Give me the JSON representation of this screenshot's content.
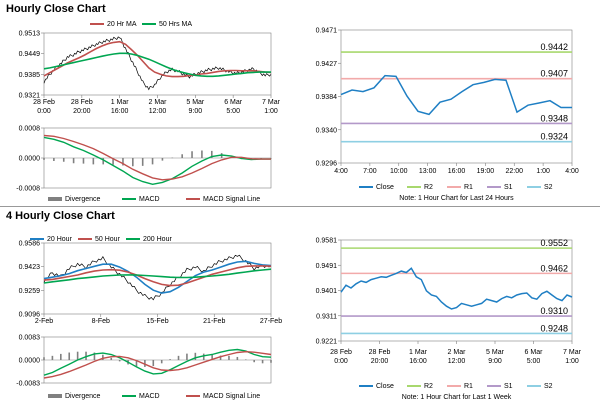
{
  "sections": {
    "hourly_title": "Hourly Close Chart",
    "four_hourly_title": "4 Hourly Close Chart"
  },
  "colors": {
    "price": "#000000",
    "ma20": "#c0504d",
    "ma50": "#00a651",
    "ma200": "#00a651",
    "macd": "#00a651",
    "signal": "#c0504d",
    "divergence": "#808080",
    "close": "#1f7fc4",
    "r2": "#a8d86e",
    "r1": "#f2aaaa",
    "s1": "#b399c9",
    "s2": "#8ecfe3"
  },
  "chart_data": [
    {
      "id": "hourly-price",
      "type": "line",
      "title": "",
      "x_tick_labels": [
        [
          "28 Feb",
          "0:00"
        ],
        [
          "28 Feb",
          "20:00"
        ],
        [
          "1 Mar",
          "16:00"
        ],
        [
          "2 Mar",
          "12:00"
        ],
        [
          "5 Mar",
          "9:00"
        ],
        [
          "6 Mar",
          "5:00"
        ],
        [
          "7 Mar",
          "1:00"
        ]
      ],
      "y_tick_labels": [
        "0.9513",
        "0.9449",
        "0.9385",
        "0.9321"
      ],
      "ylim": [
        0.9321,
        0.9513
      ],
      "legend_placement": "top",
      "legend": [
        "20 Hr MA",
        "50 Hrs MA"
      ],
      "series": [
        {
          "name": "price",
          "values": [
            0.9362,
            0.9385,
            0.9405,
            0.942,
            0.9438,
            0.9445,
            0.9455,
            0.9462,
            0.947,
            0.9478,
            0.9485,
            0.949,
            0.9495,
            0.95,
            0.9465,
            0.943,
            0.9395,
            0.936,
            0.934,
            0.9352,
            0.9375,
            0.9392,
            0.94,
            0.9395,
            0.9385,
            0.9378,
            0.9385,
            0.9392,
            0.9398,
            0.9402,
            0.9405,
            0.9398,
            0.9392,
            0.9388,
            0.9392,
            0.9398,
            0.9402,
            0.939,
            0.9382,
            0.9385
          ]
        },
        {
          "name": "20 Hr MA",
          "values": [
            0.938,
            0.939,
            0.94,
            0.941,
            0.942,
            0.9428,
            0.9436,
            0.9445,
            0.9455,
            0.9465,
            0.9473,
            0.948,
            0.9484,
            0.9486,
            0.9478,
            0.9462,
            0.9445,
            0.9425,
            0.9405,
            0.9392,
            0.9385,
            0.938,
            0.9378,
            0.9378,
            0.9379,
            0.9381,
            0.9383,
            0.9386,
            0.9388,
            0.9391,
            0.9394,
            0.9396,
            0.9397,
            0.9397,
            0.9396,
            0.9396,
            0.9396,
            0.9394,
            0.9392,
            0.9391
          ]
        },
        {
          "name": "50 Hrs MA",
          "values": [
            0.9402,
            0.9405,
            0.9409,
            0.9413,
            0.9417,
            0.9421,
            0.9425,
            0.9429,
            0.9433,
            0.9437,
            0.9441,
            0.9445,
            0.9448,
            0.945,
            0.945,
            0.9448,
            0.9444,
            0.9438,
            0.9432,
            0.9424,
            0.9416,
            0.9408,
            0.9401,
            0.9395,
            0.939,
            0.9386,
            0.9382,
            0.938,
            0.9379,
            0.9379,
            0.938,
            0.9382,
            0.9384,
            0.9386,
            0.9388,
            0.939,
            0.9391,
            0.9392,
            0.9392,
            0.9392
          ]
        }
      ]
    },
    {
      "id": "hourly-macd",
      "type": "line",
      "title": "",
      "y_tick_labels": [
        "0.0008",
        "0.0000",
        "-0.0008"
      ],
      "ylim": [
        -0.0008,
        0.0008
      ],
      "legend_placement": "bottom",
      "legend": [
        "Divergence",
        "MACD",
        "MACD Signal Line"
      ],
      "series": [
        {
          "name": "MACD",
          "values": [
            0.00055,
            0.0005,
            0.00042,
            0.0003,
            0.0002,
            8e-05,
            -5e-05,
            -0.0002,
            -0.00035,
            -0.00052,
            -0.00063,
            -0.0007,
            -0.00065,
            -0.00055,
            -0.0004,
            -0.00022,
            -8e-05,
            4e-05,
            8e-05,
            5e-05,
            -1e-05,
            -4e-05,
            -3e-05,
            -3e-05
          ]
        },
        {
          "name": "MACD Signal Line",
          "values": [
            0.0006,
            0.00058,
            0.00052,
            0.00044,
            0.00035,
            0.00025,
            0.00012,
            -2e-05,
            -0.00015,
            -0.0003,
            -0.00042,
            -0.00053,
            -0.00058,
            -0.00056,
            -0.0005,
            -0.0004,
            -0.00028,
            -0.00015,
            -5e-05,
            2e-05,
            2e-05,
            -2e-05,
            -3e-05,
            -3e-05
          ]
        },
        {
          "name": "Divergence",
          "values": [
            -5e-05,
            -8e-05,
            -0.0001,
            -0.00014,
            -0.00015,
            -0.00017,
            -0.00017,
            -0.00018,
            -0.0002,
            -0.00022,
            -0.00021,
            -0.00017,
            -7e-05,
            1e-05,
            0.0001,
            0.00018,
            0.0002,
            0.00019,
            0.00013,
            3e-05,
            -3e-05,
            -2e-05,
            0.0,
            0.0
          ]
        }
      ]
    },
    {
      "id": "hourly-levels",
      "type": "line",
      "title": "",
      "x_tick_labels": [
        "4:00",
        "7:00",
        "10:00",
        "13:00",
        "16:00",
        "19:00",
        "22:00",
        "1:00",
        "4:00"
      ],
      "y_tick_labels": [
        "0.9471",
        "0.9427",
        "0.9384",
        "0.9340",
        "0.9296"
      ],
      "ylim": [
        0.9296,
        0.9471
      ],
      "note": "Note: 1 Hour Chart for Last 24 Hours",
      "legend_placement": "bottom",
      "legend": [
        "Close",
        "R2",
        "R1",
        "S1",
        "S2"
      ],
      "levels": [
        {
          "name": "R2",
          "value": 0.9442,
          "label": "0.9442"
        },
        {
          "name": "R1",
          "value": 0.9407,
          "label": "0.9407"
        },
        {
          "name": "S1",
          "value": 0.9348,
          "label": "0.9348"
        },
        {
          "name": "S2",
          "value": 0.9324,
          "label": "0.9324"
        }
      ],
      "series": [
        {
          "name": "Close",
          "values": [
            0.9386,
            0.9392,
            0.939,
            0.9395,
            0.9411,
            0.941,
            0.9384,
            0.9364,
            0.936,
            0.9376,
            0.938,
            0.939,
            0.9399,
            0.9402,
            0.9406,
            0.9405,
            0.9363,
            0.9372,
            0.9375,
            0.9378,
            0.9369,
            0.9369
          ]
        }
      ]
    },
    {
      "id": "four-hourly-price",
      "type": "line",
      "title": "",
      "x_tick_labels": [
        "2-Feb",
        "8-Feb",
        "15-Feb",
        "21-Feb",
        "27-Feb"
      ],
      "y_tick_labels": [
        "0.9586",
        "0.9423",
        "0.9259",
        "0.9096"
      ],
      "ylim": [
        0.9096,
        0.9586
      ],
      "legend_placement": "top",
      "legend": [
        "20 Hour",
        "50 Hour",
        "200 Hour"
      ],
      "series": [
        {
          "name": "price",
          "values": [
            0.9325,
            0.938,
            0.9355,
            0.941,
            0.944,
            0.942,
            0.946,
            0.948,
            0.942,
            0.937,
            0.932,
            0.926,
            0.922,
            0.92,
            0.924,
            0.93,
            0.935,
            0.94,
            0.942,
            0.939,
            0.943,
            0.946,
            0.948,
            0.95,
            0.946,
            0.941,
            0.943,
            0.9425
          ]
        },
        {
          "name": "20 Hour",
          "values": [
            0.934,
            0.935,
            0.936,
            0.9375,
            0.9395,
            0.941,
            0.9425,
            0.944,
            0.944,
            0.942,
            0.939,
            0.935,
            0.93,
            0.926,
            0.924,
            0.925,
            0.928,
            0.932,
            0.936,
            0.9385,
            0.94,
            0.942,
            0.944,
            0.9455,
            0.946,
            0.9445,
            0.9435,
            0.943
          ]
        },
        {
          "name": "50 Hour",
          "values": [
            0.933,
            0.9335,
            0.9345,
            0.9355,
            0.9365,
            0.938,
            0.9392,
            0.94,
            0.9402,
            0.9398,
            0.9385,
            0.9365,
            0.934,
            0.9318,
            0.93,
            0.9292,
            0.9295,
            0.931,
            0.933,
            0.935,
            0.937,
            0.9385,
            0.94,
            0.9415,
            0.9425,
            0.9428,
            0.9428,
            0.9426
          ]
        },
        {
          "name": "200 Hour",
          "values": [
            0.931,
            0.9318,
            0.9325,
            0.9332,
            0.934,
            0.9346,
            0.9352,
            0.9358,
            0.9362,
            0.9365,
            0.9366,
            0.9365,
            0.9362,
            0.9358,
            0.9354,
            0.935,
            0.9348,
            0.9348,
            0.935,
            0.9354,
            0.9358,
            0.9364,
            0.937,
            0.9378,
            0.9386,
            0.9394,
            0.94,
            0.9405
          ]
        }
      ]
    },
    {
      "id": "four-hourly-macd",
      "type": "line",
      "title": "",
      "y_tick_labels": [
        "0.0083",
        "0.0000",
        "-0.0083"
      ],
      "ylim": [
        -0.0083,
        0.0083
      ],
      "legend_placement": "bottom",
      "legend": [
        "Divergence",
        "MACD",
        "MACD Signal Line"
      ],
      "series": [
        {
          "name": "MACD",
          "values": [
            -0.0055,
            -0.0045,
            -0.003,
            -0.0015,
            0.0,
            0.0012,
            0.0022,
            0.0025,
            0.002,
            0.0008,
            -0.0008,
            -0.0025,
            -0.004,
            -0.005,
            -0.0048,
            -0.0035,
            -0.002,
            -0.0005,
            0.0008,
            0.0015,
            0.002,
            0.0028,
            0.0035,
            0.0038,
            0.0032,
            0.002,
            0.0012,
            0.001
          ]
        },
        {
          "name": "MACD Signal Line",
          "values": [
            -0.0065,
            -0.006,
            -0.0052,
            -0.0042,
            -0.003,
            -0.0018,
            -0.0005,
            0.0006,
            0.0012,
            0.0013,
            0.0008,
            -0.0002,
            -0.0015,
            -0.0028,
            -0.0036,
            -0.0038,
            -0.0035,
            -0.0028,
            -0.0018,
            -0.0008,
            0.0002,
            0.0012,
            0.002,
            0.0027,
            0.003,
            0.0028,
            0.0024,
            0.002
          ]
        },
        {
          "name": "Divergence",
          "values": [
            0.001,
            0.0015,
            0.0022,
            0.0027,
            0.003,
            0.003,
            0.0027,
            0.0019,
            0.0008,
            -0.0005,
            -0.0016,
            -0.0023,
            -0.0025,
            -0.0022,
            -0.0012,
            0.0003,
            0.0015,
            0.0023,
            0.0026,
            0.0023,
            0.0018,
            0.0016,
            0.0015,
            0.0011,
            0.0002,
            -0.0008,
            -0.0012,
            -0.001
          ]
        }
      ]
    },
    {
      "id": "four-hourly-levels",
      "type": "line",
      "title": "",
      "x_tick_labels": [
        [
          "28 Feb",
          "0:00"
        ],
        [
          "28 Feb",
          "20:00"
        ],
        [
          "1 Mar",
          "16:00"
        ],
        [
          "2 Mar",
          "12:00"
        ],
        [
          "5 Mar",
          "9:00"
        ],
        [
          "6 Mar",
          "5:00"
        ],
        [
          "7 Mar",
          "1:00"
        ]
      ],
      "y_tick_labels": [
        "0.9581",
        "0.9491",
        "0.9401",
        "0.9311",
        "0.9221"
      ],
      "ylim": [
        0.9221,
        0.9581
      ],
      "note": "Note: 1 Hour Chart for Last 1 Week",
      "legend_placement": "bottom",
      "legend": [
        "Close",
        "R2",
        "R1",
        "S1",
        "S2"
      ],
      "levels": [
        {
          "name": "R2",
          "value": 0.9552,
          "label": "0.9552"
        },
        {
          "name": "R1",
          "value": 0.9462,
          "label": "0.9462"
        },
        {
          "name": "S1",
          "value": 0.931,
          "label": "0.9310"
        },
        {
          "name": "S2",
          "value": 0.9248,
          "label": "0.9248"
        }
      ],
      "series": [
        {
          "name": "Close",
          "values": [
            0.9395,
            0.942,
            0.941,
            0.9425,
            0.9435,
            0.943,
            0.944,
            0.9445,
            0.945,
            0.9448,
            0.9455,
            0.9462,
            0.947,
            0.9465,
            0.948,
            0.945,
            0.944,
            0.94,
            0.9385,
            0.938,
            0.936,
            0.9345,
            0.9335,
            0.934,
            0.9355,
            0.935,
            0.9345,
            0.935,
            0.9355,
            0.937,
            0.9365,
            0.936,
            0.9372,
            0.938,
            0.9375,
            0.9385,
            0.939,
            0.9392,
            0.9375,
            0.937,
            0.939,
            0.9398,
            0.9385,
            0.9372,
            0.9365,
            0.9385,
            0.9378
          ]
        }
      ]
    }
  ]
}
